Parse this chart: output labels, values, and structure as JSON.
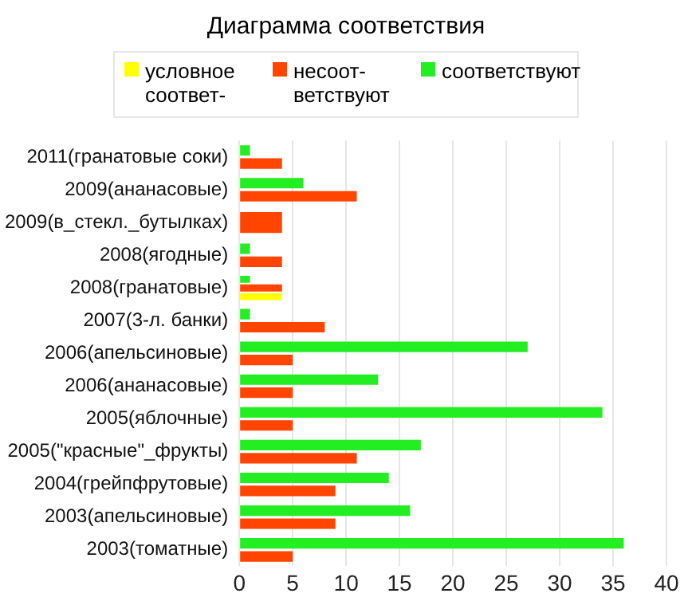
{
  "chart_data": {
    "type": "bar",
    "orientation": "horizontal",
    "title": "Диаграмма соответствия",
    "categories": [
      "2011(гранатовые соки)",
      "2009(ананасовые)",
      "2009(в_стекл._бутылках)",
      "2008(ягодные)",
      "2008(гранатовые)",
      "2007(3-л. банки)",
      "2006(апельсиновые)",
      "2006(ананасовые)",
      "2005(яблочные)",
      "2005(\"красные\"_фрукты)",
      "2004(грейпфрутовые)",
      "2003(апельсиновые)",
      "2003(томатные)"
    ],
    "series": [
      {
        "name": "условное соответ-",
        "color": "#ffff00",
        "values": [
          null,
          null,
          null,
          null,
          4,
          null,
          null,
          null,
          null,
          null,
          null,
          null,
          null
        ]
      },
      {
        "name": "несоот-ветствуют",
        "color": "#ff4500",
        "values": [
          4,
          11,
          4,
          4,
          4,
          8,
          5,
          5,
          5,
          11,
          9,
          9,
          5
        ]
      },
      {
        "name": "соответствуют",
        "color": "#22ee22",
        "values": [
          1,
          6,
          null,
          1,
          1,
          1,
          27,
          13,
          34,
          17,
          14,
          16,
          36
        ]
      }
    ],
    "xlim": [
      0,
      40
    ],
    "xticks": [
      0,
      5,
      10,
      15,
      20,
      25,
      30,
      35,
      40
    ],
    "grid": "x",
    "legend": "top"
  }
}
